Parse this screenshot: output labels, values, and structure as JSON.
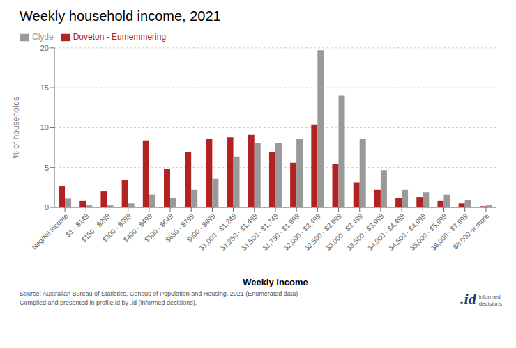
{
  "chart_data": {
    "type": "bar",
    "title": "Weekly household income, 2021",
    "xlabel": "Weekly income",
    "ylabel": "% of households",
    "categories": [
      "Neg/Nil Income",
      "$1 - $149",
      "$150 - $299",
      "$300 - $399",
      "$400 - $499",
      "$500 - $649",
      "$650 - $799",
      "$800 - $999",
      "$1,000 - $1,249",
      "$1,250 - $1,499",
      "$1,500 - $1,749",
      "$1,750 - $1,999",
      "$2,000 - $2,499",
      "$2,500 - $2,999",
      "$3,000 - $3,499",
      "$3,500 - $3,999",
      "$4,000 - $4,499",
      "$4,500 - $4,999",
      "$5,000 - $5,999",
      "$6,000 - $7,999",
      "$8,000 or more"
    ],
    "series": [
      {
        "name": "Doveton - Eumemmering",
        "color": "#b22222",
        "values": [
          2.7,
          0.8,
          2.0,
          3.4,
          8.4,
          4.8,
          6.9,
          8.6,
          8.8,
          9.1,
          6.9,
          5.6,
          10.4,
          5.5,
          3.1,
          2.2,
          1.2,
          1.3,
          0.8,
          0.5,
          0.15
        ]
      },
      {
        "name": "Clyde",
        "color": "#999999",
        "values": [
          1.1,
          0.25,
          0.25,
          0.5,
          1.6,
          1.2,
          2.2,
          3.6,
          6.4,
          8.1,
          8.1,
          8.6,
          19.7,
          14.0,
          8.6,
          4.7,
          2.2,
          1.9,
          1.6,
          0.9,
          0.25
        ]
      }
    ],
    "ylim": [
      0,
      20
    ],
    "yticks": [
      0,
      5,
      10,
      15,
      20
    ],
    "grid": true,
    "legend": "upper left",
    "annotations": [
      "Source: Australian Bureau of Statistics, Census of Population and Housing, 2021 (Enumerated data)\nCompiled and presented in profile.id by .id (informed decisions).",
      ".id",
      "informed\ndecisions"
    ]
  }
}
